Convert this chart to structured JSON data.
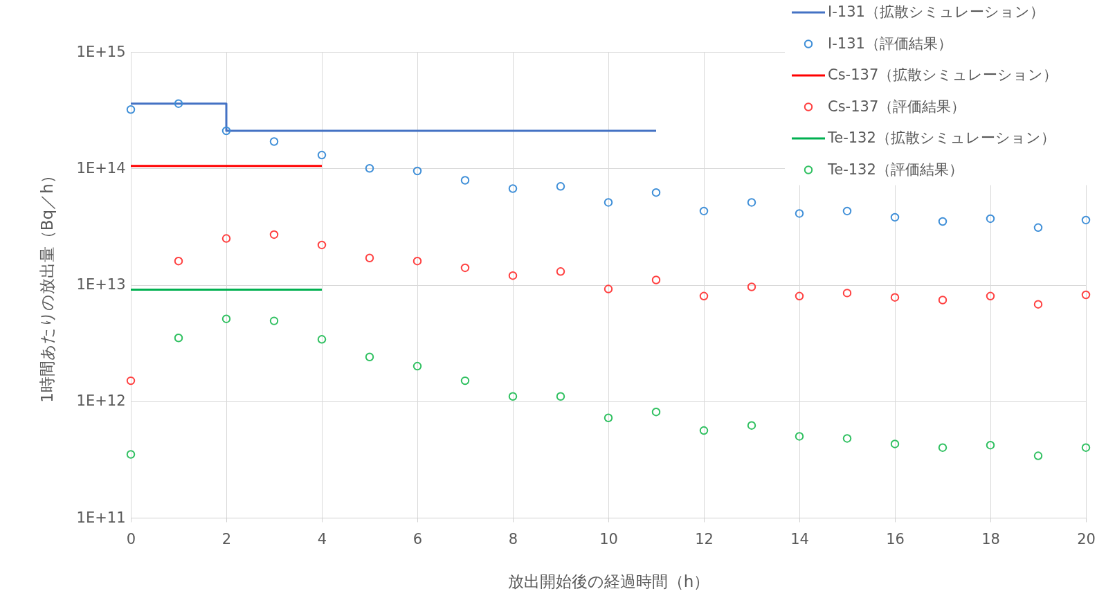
{
  "chart_data": {
    "type": "scatter",
    "xlabel": "放出開始後の経過時間（h）",
    "ylabel": "1時間あたりの放出量（Bq／h）",
    "xlim": [
      0,
      20
    ],
    "xticks": [
      0,
      2,
      4,
      6,
      8,
      10,
      12,
      14,
      16,
      18,
      20
    ],
    "ylim": [
      100000000000.0,
      1000000000000000.0
    ],
    "yticks": [
      {
        "value": 100000000000.0,
        "label": "1E+11"
      },
      {
        "value": 1000000000000.0,
        "label": "1E+12"
      },
      {
        "value": 10000000000000.0,
        "label": "1E+13"
      },
      {
        "value": 100000000000000.0,
        "label": "1E+14"
      },
      {
        "value": 1000000000000000.0,
        "label": "1E+15"
      }
    ],
    "log": "y",
    "grid": true,
    "legend": "top right",
    "marker": "circle",
    "series": [
      {
        "name": "I-131（拡散シミュレーション）",
        "type": "step",
        "marker": "none",
        "color": "#4472c4",
        "x": [
          0,
          2,
          11
        ],
        "values": [
          360000000000000.0,
          210000000000000.0,
          210000000000000.0
        ]
      },
      {
        "name": "I-131（評価結果）",
        "color": "#3f8fd8",
        "x": [
          0,
          1,
          2,
          3,
          4,
          5,
          6,
          7,
          8,
          9,
          10,
          11,
          12,
          13,
          14,
          15,
          16,
          17,
          18,
          19,
          20
        ],
        "values": [
          320000000000000.0,
          360000000000000.0,
          210000000000000.0,
          170000000000000.0,
          130000000000000.0,
          100000000000000.0,
          95000000000000.0,
          79000000000000.0,
          67000000000000.0,
          70000000000000.0,
          51000000000000.0,
          62000000000000.0,
          43000000000000.0,
          51000000000000.0,
          41000000000000.0,
          43000000000000.0,
          38000000000000.0,
          35000000000000.0,
          37000000000000.0,
          31000000000000.0,
          36000000000000.0
        ]
      },
      {
        "name": "Cs-137（拡散シミュレーション）",
        "type": "line",
        "marker": "none",
        "color": "#ff0000",
        "x": [
          0,
          4
        ],
        "values": [
          105000000000000.0,
          105000000000000.0
        ]
      },
      {
        "name": "Cs-137（評価結果）",
        "color": "#ff4040",
        "x": [
          0,
          1,
          2,
          3,
          4,
          5,
          6,
          7,
          8,
          9,
          10,
          11,
          12,
          13,
          14,
          15,
          16,
          17,
          18,
          19,
          20
        ],
        "values": [
          1500000000000.0,
          16000000000000.0,
          25000000000000.0,
          27000000000000.0,
          22000000000000.0,
          17000000000000.0,
          16000000000000.0,
          14000000000000.0,
          12000000000000.0,
          13000000000000.0,
          9200000000000.0,
          11000000000000.0,
          8000000000000.0,
          9600000000000.0,
          8000000000000.0,
          8500000000000.0,
          7800000000000.0,
          7400000000000.0,
          8000000000000.0,
          6800000000000.0,
          8200000000000.0
        ]
      },
      {
        "name": "Te-132（拡散シミュレーション）",
        "type": "line",
        "marker": "none",
        "color": "#00b050",
        "x": [
          0,
          4
        ],
        "values": [
          9100000000000.0,
          9100000000000.0
        ]
      },
      {
        "name": "Te-132（評価結果）",
        "color": "#2fc060",
        "x": [
          0,
          1,
          2,
          3,
          4,
          5,
          6,
          7,
          8,
          9,
          10,
          11,
          12,
          13,
          14,
          15,
          16,
          17,
          18,
          19,
          20
        ],
        "values": [
          350000000000.0,
          3500000000000.0,
          5100000000000.0,
          4900000000000.0,
          3400000000000.0,
          2400000000000.0,
          2000000000000.0,
          1500000000000.0,
          1100000000000.0,
          1100000000000.0,
          720000000000.0,
          810000000000.0,
          560000000000.0,
          620000000000.0,
          500000000000.0,
          480000000000.0,
          430000000000.0,
          400000000000.0,
          420000000000.0,
          340000000000.0,
          400000000000.0
        ]
      }
    ]
  }
}
